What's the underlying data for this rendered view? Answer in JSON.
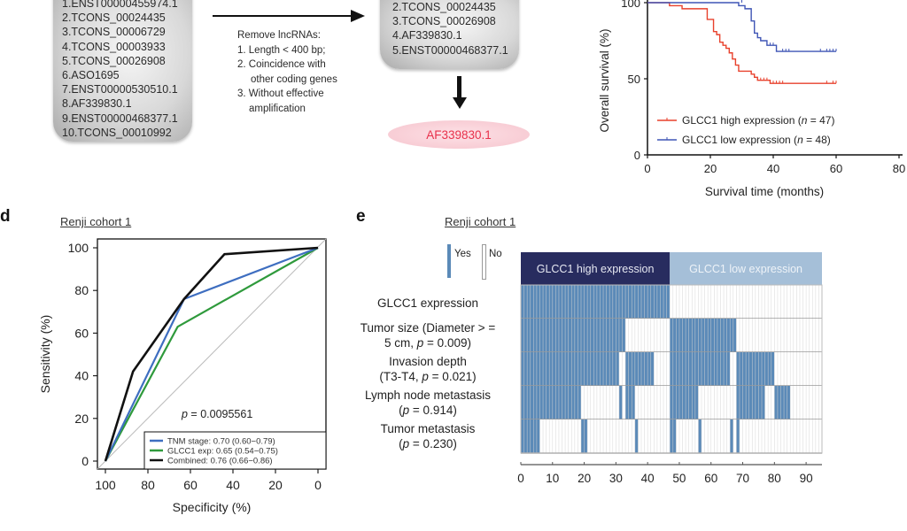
{
  "panel_b": {
    "candidate_list": [
      "1.ENST00000455974.1",
      "2.TCONS_00024435",
      "3.TCONS_00006729",
      "4.TCONS_00003933",
      "5.TCONS_00026908",
      "6.ASO1695",
      "7.ENST00000530510.1",
      "8.AF339830.1",
      "9.ENST00000468377.1",
      "10.TCONS_00010992"
    ],
    "filter_title": "Remove lncRNAs:",
    "filter_steps": [
      "1. Length < 400 bp;",
      "2. Coincidence with",
      "other coding genes",
      "3. Without effective",
      "amplification"
    ],
    "filtered_list": [
      "2.TCONS_00024435",
      "3.TCONS_00026908",
      "4.AF339830.1",
      "5.ENST00000468377.1"
    ],
    "final_candidate": "AF339830.1",
    "final_color": "#e8314b"
  },
  "chart_data": [
    {
      "id": "km",
      "type": "line",
      "title": "",
      "xlabel": "Survival time (months)",
      "ylabel": "Overall survival (%)",
      "xlim": [
        0,
        80
      ],
      "ylim": [
        0,
        100
      ],
      "xticks": [
        "0",
        "20",
        "40",
        "60",
        "80"
      ],
      "yticks": [
        "0",
        "50",
        "100"
      ],
      "legend_position": "bottom-left",
      "series": [
        {
          "name": "GLCC1 high expression",
          "n_label": "(n = 47)",
          "color": "#e8412c",
          "x": [
            0,
            7,
            7,
            11,
            11,
            19,
            19,
            21,
            21,
            22,
            22,
            23,
            23,
            24,
            24,
            25,
            25,
            26,
            26,
            27,
            27,
            28,
            28,
            29,
            29,
            33,
            33,
            34,
            34,
            35,
            35,
            39,
            39,
            60
          ],
          "y": [
            100,
            100,
            98,
            98,
            96,
            96,
            89,
            89,
            81,
            81,
            79,
            79,
            74,
            74,
            72,
            72,
            70,
            70,
            67,
            67,
            63,
            63,
            59,
            59,
            55,
            55,
            53,
            53,
            51,
            51,
            49,
            49,
            47,
            47
          ],
          "censor_x": [
            36,
            37,
            38,
            40,
            41,
            42,
            43,
            57,
            59,
            60
          ],
          "censor_y": [
            49,
            49,
            49,
            47,
            47,
            47,
            47,
            47,
            47,
            47
          ]
        },
        {
          "name": "GLCC1 low expression",
          "n_label": "(n = 48)",
          "color": "#3f55b5",
          "x": [
            0,
            29,
            29,
            31,
            31,
            33,
            33,
            34,
            34,
            35,
            35,
            36,
            36,
            38,
            38,
            41,
            41,
            60
          ],
          "y": [
            100,
            100,
            98,
            98,
            96,
            96,
            88,
            88,
            80,
            80,
            77,
            77,
            75,
            75,
            72,
            72,
            68,
            68
          ],
          "censor_x": [
            30,
            39,
            40,
            43,
            44,
            45,
            55,
            57,
            58,
            59,
            60
          ],
          "censor_y": [
            100,
            72,
            72,
            68,
            68,
            68,
            68,
            68,
            68,
            68,
            68
          ]
        }
      ]
    },
    {
      "id": "roc",
      "type": "line",
      "title": "Renji cohort 1",
      "xlabel": "Specificity (%)",
      "ylabel": "Sensitivity (%)",
      "xlim": [
        100,
        0
      ],
      "ylim": [
        0,
        100
      ],
      "xticks": [
        "100",
        "80",
        "60",
        "40",
        "20",
        "0"
      ],
      "yticks": [
        "0",
        "20",
        "40",
        "60",
        "80",
        "100"
      ],
      "annotation": "p = 0.0095561",
      "legend_position": "bottom-right",
      "series": [
        {
          "name": "TNM stage: 0.70 (0.60−0.79)",
          "color": "#3e6ec0",
          "x": [
            100,
            63,
            0
          ],
          "y": [
            0,
            76,
            100
          ]
        },
        {
          "name": "GLCC1 exp: 0.65 (0.54−0.75)",
          "color": "#2f9a3c",
          "x": [
            100,
            66,
            0
          ],
          "y": [
            0,
            63,
            100
          ]
        },
        {
          "name": "Combined: 0.76 (0.66−0.86)",
          "color": "#111111",
          "x": [
            100,
            87,
            63,
            44,
            0
          ],
          "y": [
            0,
            42,
            76,
            97,
            100
          ]
        }
      ]
    },
    {
      "id": "heatmap",
      "type": "heatmap",
      "title": "Renji cohort 1",
      "legend": {
        "yes": "Yes",
        "no": "No"
      },
      "yes_color": "#5b8ab8",
      "no_color": "#ffffff",
      "groups": [
        {
          "label": "GLCC1 high expression",
          "from": 0,
          "to": 47,
          "color": "#282c5f",
          "text_color": "#e6e8f2"
        },
        {
          "label": "GLCC1 low expression",
          "from": 47,
          "to": 95,
          "color": "#a5bfd8",
          "text_color": "#eef3f8"
        }
      ],
      "xlim": [
        0,
        95
      ],
      "xticks": [
        "0",
        "10",
        "20",
        "30",
        "40",
        "50",
        "60",
        "70",
        "80",
        "90"
      ],
      "rows": [
        {
          "label": [
            "GLCC1 expression"
          ],
          "yes_ranges": [
            [
              0,
              47
            ]
          ]
        },
        {
          "label": [
            "Tumor size (Diameter > =",
            "5 cm, p = 0.009)"
          ],
          "yes_ranges": [
            [
              0,
              33
            ],
            [
              47,
              68
            ]
          ]
        },
        {
          "label": [
            "Invasion depth",
            "(T3-T4, p = 0.021)"
          ],
          "yes_ranges": [
            [
              0,
              31
            ],
            [
              33,
              42
            ],
            [
              47,
              66
            ],
            [
              68,
              80
            ]
          ]
        },
        {
          "label": [
            "Lymph node metastasis",
            "(p = 0.914)"
          ],
          "yes_ranges": [
            [
              0,
              19
            ],
            [
              31,
              32
            ],
            [
              33,
              36
            ],
            [
              47,
              56
            ],
            [
              68,
              77
            ],
            [
              80,
              85
            ]
          ]
        },
        {
          "label": [
            "Tumor metastasis",
            "(p = 0.230)"
          ],
          "yes_ranges": [
            [
              0,
              6
            ],
            [
              19,
              21
            ],
            [
              36,
              37
            ],
            [
              47,
              49
            ],
            [
              56,
              57
            ],
            [
              66,
              67
            ],
            [
              68,
              69
            ]
          ]
        }
      ]
    }
  ],
  "panels": {
    "d_letter": "d",
    "e_letter": "e"
  }
}
